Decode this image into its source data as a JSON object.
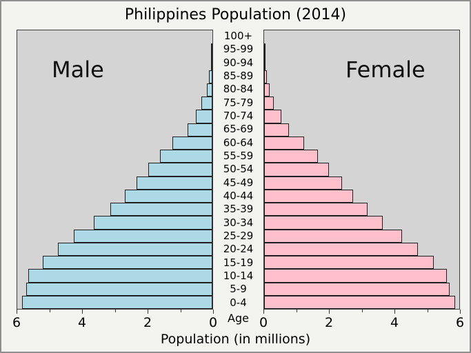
{
  "title": "Philippines Population (2014)",
  "colors": {
    "male_bar": "#add8e6",
    "female_bar": "#ffc0cb",
    "bar_edge": "#1f1f1f",
    "plot_background": "#d4d4d4",
    "figure_background": "#f3f3f0"
  },
  "chart_data": {
    "type": "bar",
    "subtype": "population-pyramid",
    "title": "Philippines Population (2014)",
    "xlabel": "Population (in millions)",
    "age_axis_title": "Age",
    "left_series_label": "Male",
    "right_series_label": "Female",
    "categories_top_to_bottom": [
      "100+",
      "95-99",
      "90-94",
      "85-89",
      "80-84",
      "75-79",
      "70-74",
      "65-69",
      "60-64",
      "55-59",
      "50-54",
      "45-49",
      "40-44",
      "35-39",
      "30-34",
      "25-29",
      "20-24",
      "15-19",
      "10-14",
      "5-9",
      "0-4"
    ],
    "series": [
      {
        "name": "Male",
        "side": "left",
        "color": "#add8e6",
        "values_top_to_bottom": [
          0.0,
          0.01,
          0.04,
          0.1,
          0.18,
          0.34,
          0.5,
          0.76,
          1.22,
          1.62,
          1.97,
          2.33,
          2.7,
          3.13,
          3.65,
          4.27,
          4.75,
          5.22,
          5.66,
          5.73,
          5.85
        ]
      },
      {
        "name": "Female",
        "side": "right",
        "color": "#ffc0cb",
        "values_top_to_bottom": [
          0.0,
          0.01,
          0.04,
          0.08,
          0.18,
          0.3,
          0.53,
          0.76,
          1.24,
          1.65,
          2.0,
          2.39,
          2.74,
          3.17,
          3.64,
          4.24,
          4.73,
          5.21,
          5.61,
          5.71,
          5.88
        ]
      }
    ],
    "xlim": [
      0,
      6
    ],
    "x_major_ticks": [
      0,
      2,
      4,
      6
    ],
    "x_minor_ticks": [
      1,
      3,
      5
    ],
    "left_axis_tick_labels_left_to_right": [
      "6",
      "4",
      "2",
      "0"
    ],
    "right_axis_tick_labels_left_to_right": [
      "0",
      "2",
      "4",
      "6"
    ],
    "grid": false,
    "legend": "none"
  }
}
